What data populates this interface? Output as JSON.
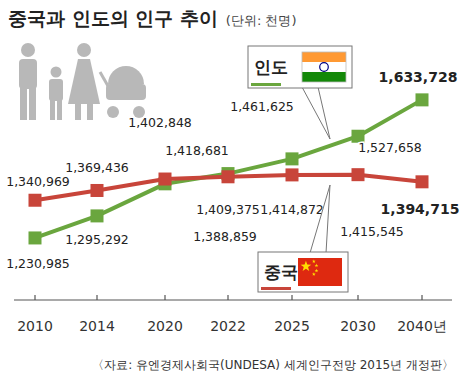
{
  "chart_data": {
    "type": "line",
    "title": "중국과 인도의 인구 추이",
    "subtitle": "(단위: 천명)",
    "source": "〈자료: 유엔경제사회국(UNDESA) 세계인구전망 2015년 개정판〉",
    "categories": [
      "2010",
      "2014",
      "2020",
      "2022",
      "2025",
      "2030",
      "2040년"
    ],
    "series": [
      {
        "name": "인도",
        "color": "#6aa63e",
        "marker": "square",
        "values": [
          1230985,
          1295292,
          1388859,
          1418681,
          1461625,
          1527658,
          1633728
        ],
        "value_labels": [
          "1,230,985",
          "1,295,292",
          "1,388,859",
          "1,418,681",
          "1,461,625",
          "1,527,658",
          "1,633,728"
        ]
      },
      {
        "name": "중국",
        "color": "#c8453a",
        "marker": "square",
        "values": [
          1340969,
          1369436,
          1402848,
          1409375,
          1414872,
          1415545,
          1394715
        ],
        "value_labels": [
          "1,340,969",
          "1,369,436",
          "1,402,848",
          "1,409,375",
          "1,414,872",
          "1,415,545",
          "1,394,715"
        ]
      }
    ],
    "ylim": [
      1050000,
      1750000
    ],
    "tick_labels": "x",
    "data_labels": true
  }
}
